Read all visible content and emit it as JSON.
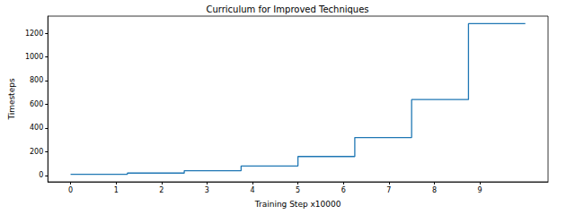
{
  "chart_data": {
    "type": "line",
    "title": "Curriculum for Improved Techniques",
    "x_label": "Training Step x10000",
    "y_label": "Timesteps",
    "x": [
      0,
      1.25,
      2.5,
      3.75,
      5,
      6.25,
      7.5,
      8.75,
      10
    ],
    "values": [
      10,
      20,
      40,
      80,
      160,
      320,
      640,
      1280,
      1280
    ],
    "line_style": "step",
    "color": "#1f77b4",
    "xlim": [
      -0.5,
      10.5
    ],
    "xticks": [
      0,
      1,
      2,
      3,
      4,
      5,
      6,
      7,
      8,
      9
    ],
    "ylim": [
      -53.5,
      1343.5
    ],
    "yticks": [
      0,
      200,
      400,
      600,
      800,
      1000,
      1200
    ],
    "grid": false
  }
}
